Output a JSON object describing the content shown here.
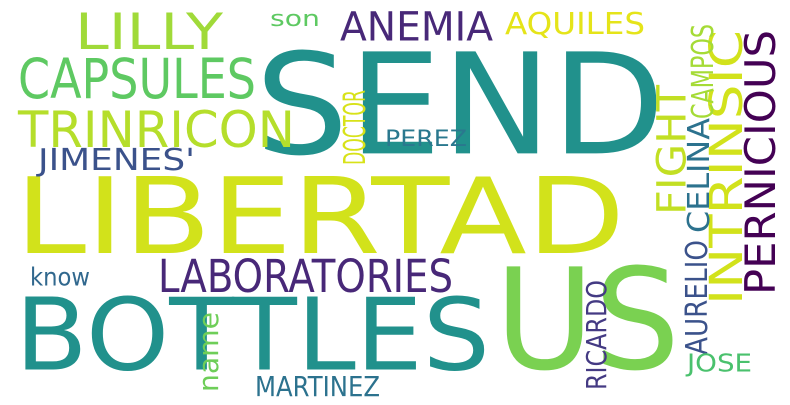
{
  "words": [
    {
      "text": "SEND",
      "color": "#21918c",
      "rotation": 0
    },
    {
      "text": "LIBERTAD",
      "color": "#d2e21b",
      "rotation": 0
    },
    {
      "text": "US",
      "color": "#7ad151",
      "rotation": 0
    },
    {
      "text": "BOTTLES",
      "color": "#21918c",
      "rotation": 0
    },
    {
      "text": "LABORATORIES",
      "color": "#482878",
      "rotation": 0
    },
    {
      "text": "CAPSULES",
      "color": "#5ec962",
      "rotation": 0
    },
    {
      "text": "TRINRICON",
      "color": "#b5de2b",
      "rotation": 0
    },
    {
      "text": "LILLY",
      "color": "#a0da39",
      "rotation": 0
    },
    {
      "text": "ANEMIA",
      "color": "#482878",
      "rotation": 0
    },
    {
      "text": "AQUILES",
      "color": "#e5e419",
      "rotation": 0
    },
    {
      "text": "PERNICIOUS",
      "color": "#440154",
      "rotation": 270
    },
    {
      "text": "INTRINSIC",
      "color": "#d2e21b",
      "rotation": 270
    },
    {
      "text": "FIGHT",
      "color": "#c2df23",
      "rotation": 270
    },
    {
      "text": "CAMPOS",
      "color": "#a5db36",
      "rotation": 270
    },
    {
      "text": "CELINA",
      "color": "#2c728e",
      "rotation": 270
    },
    {
      "text": "AURELIO",
      "color": "#3b528b",
      "rotation": 270
    },
    {
      "text": "JOSE",
      "color": "#4ac16d",
      "rotation": 0
    },
    {
      "text": "DOCTOR",
      "color": "#d8e219",
      "rotation": 270
    },
    {
      "text": "JIMENES'",
      "color": "#3b528b",
      "rotation": 0
    },
    {
      "text": "PEREZ",
      "color": "#2a788e",
      "rotation": 0
    },
    {
      "text": "son",
      "color": "#5ec962",
      "rotation": 0
    },
    {
      "text": "know",
      "color": "#31688e",
      "rotation": 0
    },
    {
      "text": "name",
      "color": "#6ece58",
      "rotation": 270
    },
    {
      "text": "MARTINEZ",
      "color": "#2c728e",
      "rotation": 0
    },
    {
      "text": "RICARDO",
      "color": "#443a83",
      "rotation": 270
    }
  ]
}
